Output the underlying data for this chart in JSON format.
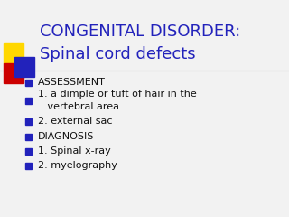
{
  "title_line1": "CONGENITAL DISORDER:",
  "title_line2": "Spinal cord defects",
  "title_color": "#2222BB",
  "background_color": "#F2F2F2",
  "bullet_color": "#111111",
  "bullet_square_color": "#2222BB",
  "items": [
    {
      "text": "ASSESSMENT",
      "indent": 0,
      "bold": false
    },
    {
      "text": "1. a dimple or tuft of hair in the\n   vertebral area",
      "indent": 0,
      "bold": false
    },
    {
      "text": "2. external sac",
      "indent": 0,
      "bold": false
    },
    {
      "text": "DIAGNOSIS",
      "indent": 0,
      "bold": false
    },
    {
      "text": "1. Spinal x-ray",
      "indent": 0,
      "bold": false
    },
    {
      "text": "2. myelography",
      "indent": 0,
      "bold": false
    }
  ],
  "separator_color": "#AAAAAA",
  "figsize": [
    3.2,
    2.4
  ],
  "dpi": 100
}
